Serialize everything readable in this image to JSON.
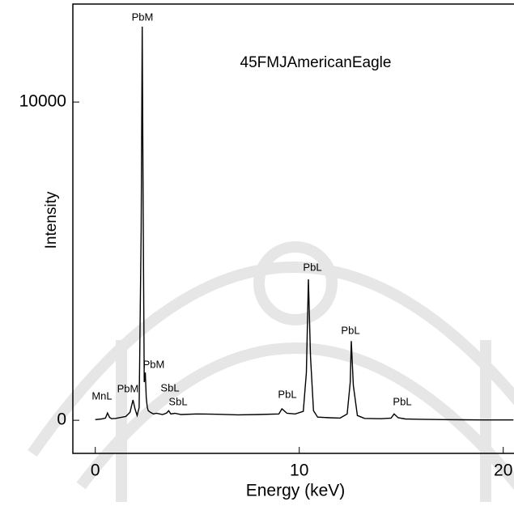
{
  "chart_data": {
    "type": "line",
    "title": "45FMJAmericanEagle",
    "x_label": "Energy (keV)",
    "y_label": "Intensity",
    "x": [
      0,
      0.3,
      0.5,
      0.6,
      0.7,
      0.8,
      1.0,
      1.5,
      1.7,
      1.85,
      1.95,
      2.05,
      2.15,
      2.25,
      2.3,
      2.35,
      2.4,
      2.45,
      2.5,
      2.55,
      2.6,
      2.7,
      2.85,
      3.0,
      3.3,
      3.5,
      3.6,
      3.7,
      3.9,
      4.2,
      5,
      6,
      7,
      8,
      9,
      9.15,
      9.4,
      9.8,
      10.2,
      10.35,
      10.45,
      10.55,
      10.7,
      10.9,
      11.5,
      12,
      12.35,
      12.5,
      12.55,
      12.65,
      12.85,
      13.2,
      14,
      14.5,
      14.65,
      14.85,
      15.2,
      16,
      17,
      18,
      19,
      20,
      20.5
    ],
    "values": [
      20,
      40,
      70,
      230,
      90,
      50,
      60,
      120,
      250,
      640,
      350,
      150,
      400,
      6000,
      12370,
      6500,
      1200,
      1500,
      700,
      400,
      300,
      250,
      200,
      220,
      180,
      230,
      300,
      200,
      220,
      180,
      200,
      190,
      170,
      180,
      200,
      360,
      220,
      200,
      280,
      1500,
      4430,
      2000,
      300,
      100,
      80,
      70,
      200,
      1200,
      2490,
      1100,
      150,
      60,
      50,
      70,
      200,
      80,
      40,
      30,
      20,
      15,
      10,
      10,
      10
    ],
    "color": "#000000",
    "xlim": [
      -1.1,
      20.5
    ],
    "ylim": [
      -1040,
      13080
    ],
    "xticks": [
      0,
      10,
      20
    ],
    "yticks": [
      0,
      10000
    ],
    "annotations": [
      "PbM",
      "MnL",
      "PbM",
      "PbM",
      "SbL",
      "SbL",
      "PbL",
      "PbL",
      "PbL",
      "PbL"
    ]
  }
}
